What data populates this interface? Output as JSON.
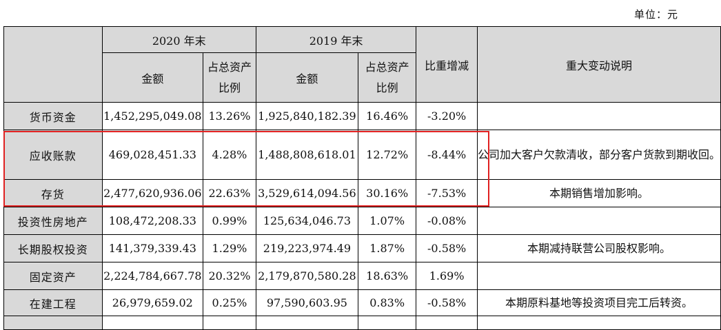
{
  "unit_label": "单位：元",
  "header": {
    "group_2020": "2020 年末",
    "group_2019": "2019 年末",
    "amount": "金额",
    "share_line1": "占总资产",
    "share_line2": "比例",
    "change": "比重增减",
    "note": "重大变动说明"
  },
  "rows": [
    {
      "label": "货币资金",
      "amt2020": "1,452,295,049.08",
      "pct2020": "13.26%",
      "amt2019": "1,925,840,182.39",
      "pct2019": "16.46%",
      "change": "-3.20%",
      "note": ""
    },
    {
      "label": "应收账款",
      "amt2020": "469,028,451.33",
      "pct2020": "4.28%",
      "amt2019": "1,488,808,618.01",
      "pct2019": "12.72%",
      "change": "-8.44%",
      "note": "公司加大客户欠款清收，部分客户货款到期收回。"
    },
    {
      "label": "存货",
      "amt2020": "2,477,620,936.06",
      "pct2020": "22.63%",
      "amt2019": "3,529,614,094.56",
      "pct2019": "30.16%",
      "change": "-7.53%",
      "note": "本期销售增加影响。"
    },
    {
      "label": "投资性房地产",
      "amt2020": "108,472,208.33",
      "pct2020": "0.99%",
      "amt2019": "125,634,046.73",
      "pct2019": "1.07%",
      "change": "-0.08%",
      "note": ""
    },
    {
      "label": "长期股权投资",
      "amt2020": "141,379,339.43",
      "pct2020": "1.29%",
      "amt2019": "219,223,974.49",
      "pct2019": "1.87%",
      "change": "-0.58%",
      "note": "本期减持联营公司股权影响。"
    },
    {
      "label": "固定资产",
      "amt2020": "2,224,784,667.78",
      "pct2020": "20.32%",
      "amt2019": "2,179,870,580.28",
      "pct2019": "18.63%",
      "change": "1.69%",
      "note": ""
    },
    {
      "label": "在建工程",
      "amt2020": "26,979,659.02",
      "pct2020": "0.25%",
      "amt2019": "97,590,603.95",
      "pct2019": "0.83%",
      "change": "-0.58%",
      "note": "本期原料基地等投资项目完工后转资。"
    }
  ],
  "highlight_color": "#e02020"
}
